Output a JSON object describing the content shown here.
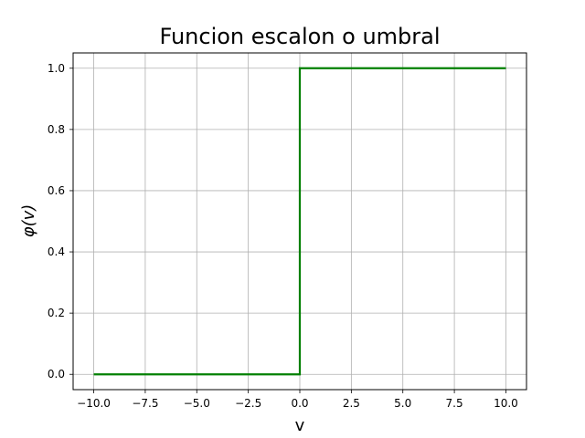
{
  "chart_data": {
    "type": "line",
    "title": "Funcion escalon o umbral",
    "xlabel": "v",
    "ylabel": "φ(v)",
    "xlim": [
      -11.0,
      11.0
    ],
    "ylim": [
      -0.05,
      1.05
    ],
    "xticks": [
      -10.0,
      -7.5,
      -5.0,
      -2.5,
      0.0,
      2.5,
      5.0,
      7.5,
      10.0
    ],
    "xtick_labels": [
      "−10.0",
      "−7.5",
      "−5.0",
      "−2.5",
      "0.0",
      "2.5",
      "5.0",
      "7.5",
      "10.0"
    ],
    "yticks": [
      0.0,
      0.2,
      0.4,
      0.6,
      0.8,
      1.0
    ],
    "ytick_labels": [
      "0.0",
      "0.2",
      "0.4",
      "0.6",
      "0.8",
      "1.0"
    ],
    "grid": true,
    "series": [
      {
        "color": "#008000",
        "x": [
          -10.0,
          0.0,
          0.0,
          10.0
        ],
        "y": [
          0.0,
          0.0,
          1.0,
          1.0
        ]
      }
    ]
  }
}
